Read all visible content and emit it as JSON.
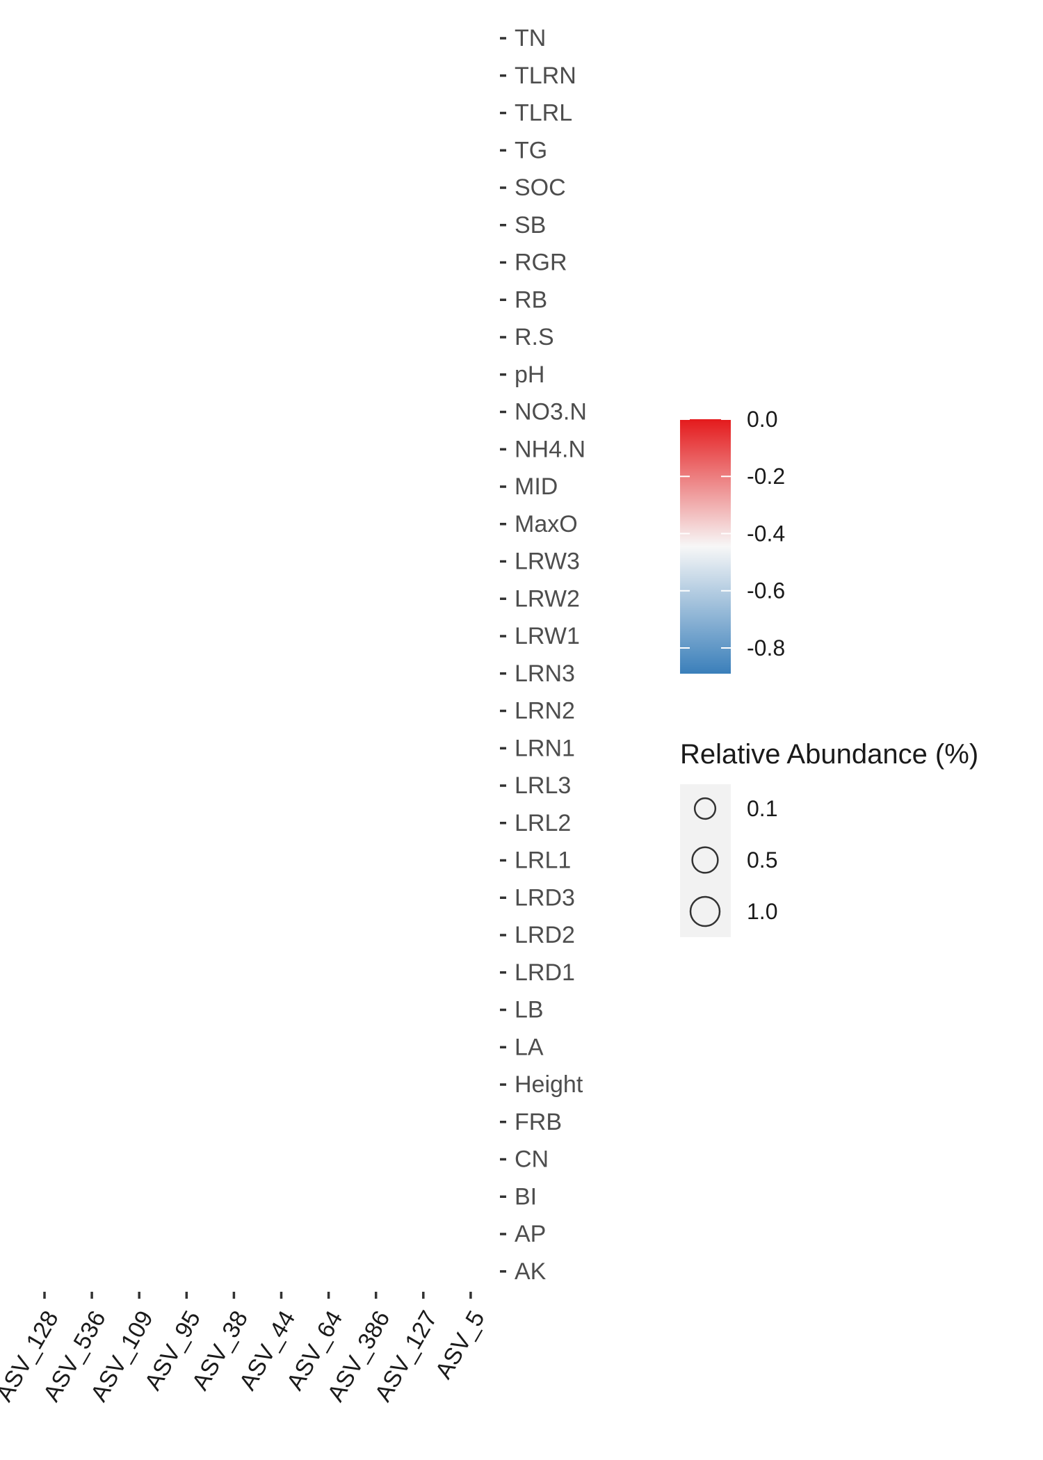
{
  "chart_data": {
    "type": "scatter",
    "y_categories": [
      "TN",
      "TLRN",
      "TLRL",
      "TG",
      "SOC",
      "SB",
      "RGR",
      "RB",
      "R.S",
      "pH",
      "NO3.N",
      "NH4.N",
      "MID",
      "MaxO",
      "LRW3",
      "LRW2",
      "LRW1",
      "LRN3",
      "LRN2",
      "LRN1",
      "LRL3",
      "LRL2",
      "LRL1",
      "LRD3",
      "LRD2",
      "LRD1",
      "LB",
      "LA",
      "Height",
      "FRB",
      "CN",
      "BI",
      "AP",
      "AK"
    ],
    "x_categories": [
      "ASV_128",
      "ASV_536",
      "ASV_109",
      "ASV_95",
      "ASV_38",
      "ASV_44",
      "ASV_64",
      "ASV_386",
      "ASV_127",
      "ASV_5"
    ],
    "color_scale": {
      "labels": [
        "0.0",
        "-0.2",
        "-0.4",
        "-0.6",
        "-0.8"
      ],
      "values": [
        0.0,
        -0.2,
        -0.4,
        -0.6,
        -0.8
      ],
      "range": [
        -0.89,
        0.0
      ],
      "high_color": "#e41a1c",
      "mid_color": "#f7f7f7",
      "low_color": "#3a7fba"
    },
    "size_legend": {
      "title": "Relative Abundance (%)",
      "labels": [
        "0.1",
        "0.5",
        "1.0"
      ],
      "values": [
        0.1,
        0.5,
        1.0
      ]
    },
    "points": []
  }
}
